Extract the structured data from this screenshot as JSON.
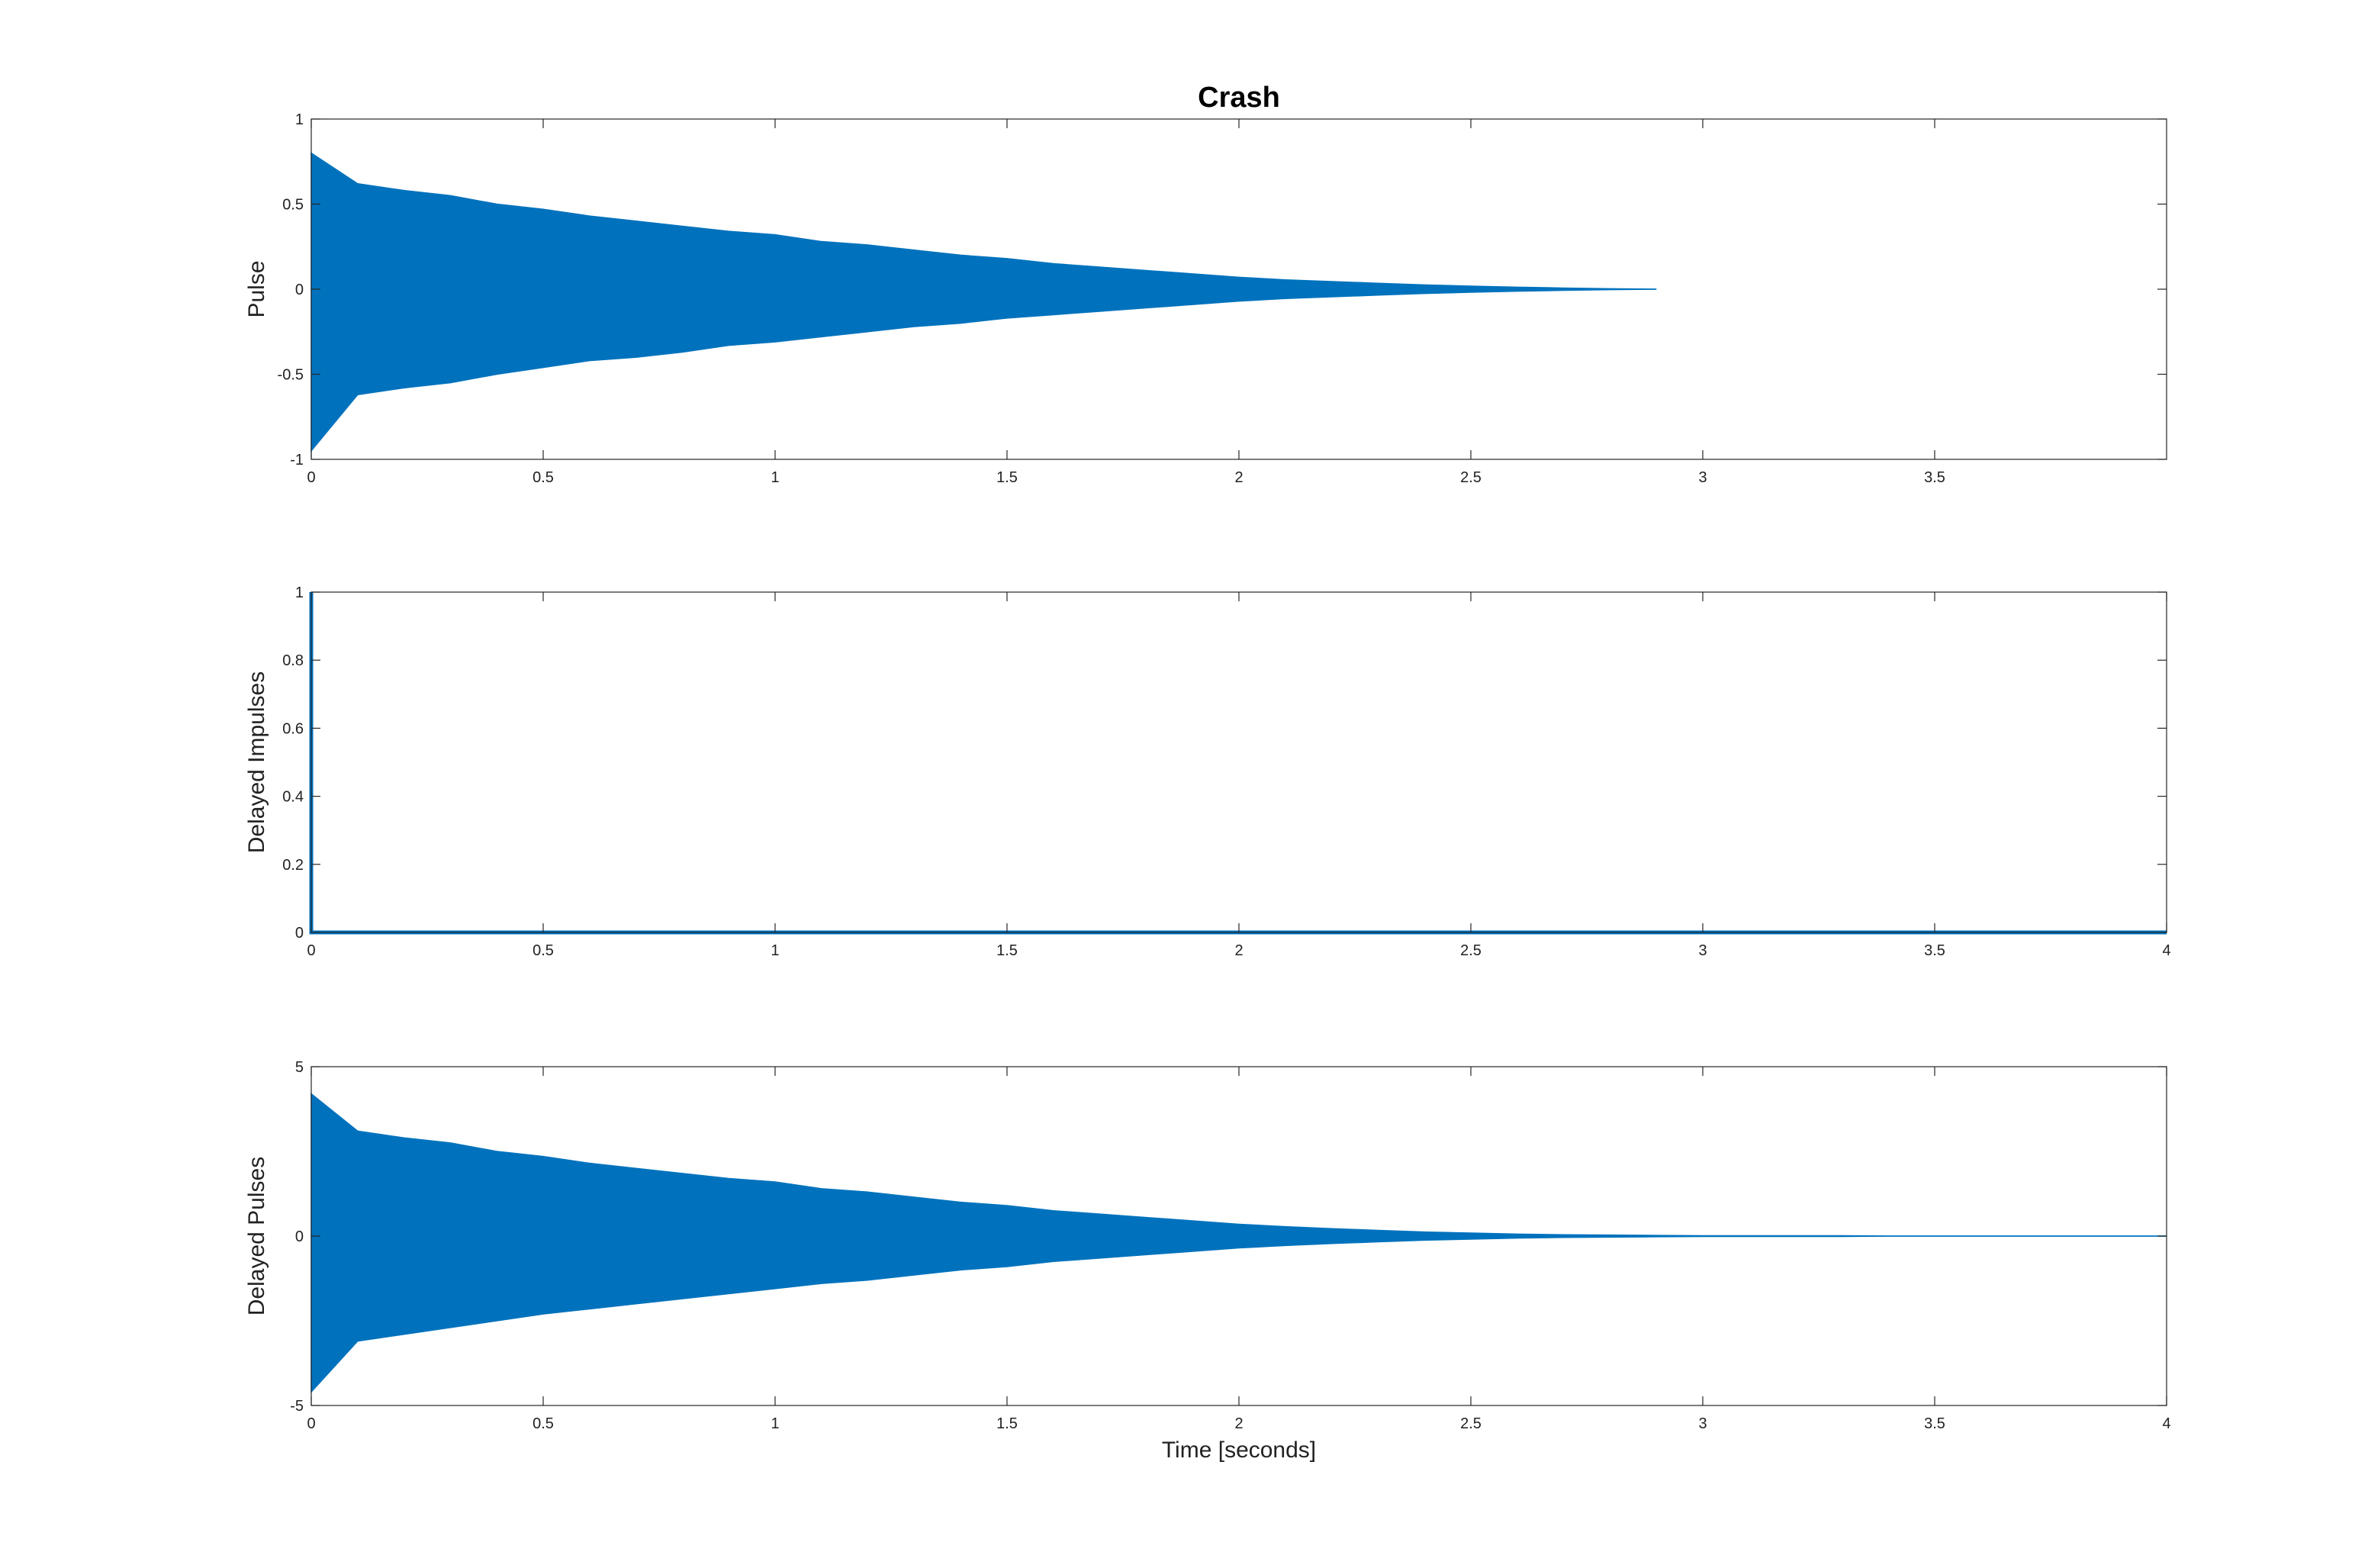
{
  "chart_data": [
    {
      "type": "area",
      "title": "Crash",
      "ylabel": "Pulse",
      "color": "#0072bd",
      "x": [
        0,
        0.1,
        0.2,
        0.3,
        0.4,
        0.5,
        0.6,
        0.7,
        0.8,
        0.9,
        1.0,
        1.1,
        1.2,
        1.3,
        1.4,
        1.5,
        1.6,
        1.7,
        1.8,
        1.9,
        2.0,
        2.1,
        2.2,
        2.3,
        2.4,
        2.5,
        2.6,
        2.7,
        2.8,
        2.9
      ],
      "series": [
        {
          "color": "#0072bd",
          "values": [
            0.8,
            0.62,
            0.58,
            0.55,
            0.5,
            0.47,
            0.43,
            0.4,
            0.37,
            0.34,
            0.32,
            0.28,
            0.26,
            0.23,
            0.2,
            0.18,
            0.15,
            0.13,
            0.11,
            0.09,
            0.07,
            0.055,
            0.045,
            0.035,
            0.025,
            0.018,
            0.012,
            0.007,
            0.003,
            0
          ]
        },
        {
          "color": "#0072bd",
          "values": [
            -0.95,
            -0.62,
            -0.58,
            -0.55,
            -0.5,
            -0.46,
            -0.42,
            -0.4,
            -0.37,
            -0.33,
            -0.31,
            -0.28,
            -0.25,
            -0.22,
            -0.2,
            -0.17,
            -0.15,
            -0.13,
            -0.11,
            -0.09,
            -0.07,
            -0.055,
            -0.045,
            -0.035,
            -0.025,
            -0.018,
            -0.012,
            -0.007,
            -0.003,
            0
          ]
        }
      ],
      "xlim": [
        0,
        4
      ],
      "xticks": [
        0,
        0.5,
        1,
        1.5,
        2,
        2.5,
        3,
        3.5
      ],
      "ylim": [
        -1,
        1
      ],
      "yticks": [
        -1,
        -0.5,
        0,
        0.5,
        1
      ]
    },
    {
      "type": "line",
      "ylabel": "Delayed Impulses",
      "color": "#0072bd",
      "x": [
        0,
        0,
        0,
        4
      ],
      "series": [
        {
          "color": "#0072bd",
          "values": [
            0,
            1,
            0,
            0
          ]
        }
      ],
      "xlim": [
        0,
        4
      ],
      "xticks": [
        0,
        0.5,
        1,
        1.5,
        2,
        2.5,
        3,
        3.5,
        4
      ],
      "ylim": [
        0,
        1
      ],
      "yticks": [
        0,
        0.2,
        0.4,
        0.6,
        0.8,
        1
      ]
    },
    {
      "type": "area",
      "ylabel": "Delayed Pulses",
      "xlabel": "Time [seconds]",
      "color": "#0072bd",
      "x": [
        0,
        0.1,
        0.2,
        0.3,
        0.4,
        0.5,
        0.6,
        0.7,
        0.8,
        0.9,
        1.0,
        1.1,
        1.2,
        1.3,
        1.4,
        1.5,
        1.6,
        1.7,
        1.8,
        1.9,
        2.0,
        2.1,
        2.2,
        2.3,
        2.4,
        2.5,
        2.6,
        2.7,
        2.8,
        2.9,
        3.0,
        3.1,
        3.2,
        3.3,
        3.4,
        3.5,
        3.6,
        3.7,
        3.8,
        3.9,
        4.0
      ],
      "series": [
        {
          "color": "#0072bd",
          "values": [
            4.2,
            3.1,
            2.9,
            2.75,
            2.5,
            2.35,
            2.15,
            2.0,
            1.85,
            1.7,
            1.6,
            1.4,
            1.3,
            1.15,
            1.0,
            0.9,
            0.75,
            0.65,
            0.55,
            0.45,
            0.35,
            0.28,
            0.22,
            0.17,
            0.12,
            0.09,
            0.06,
            0.04,
            0.03,
            0.02,
            0.01,
            0.01,
            0.01,
            0.01,
            0,
            0,
            0,
            0,
            0,
            0,
            0
          ]
        },
        {
          "color": "#0072bd",
          "values": [
            -4.6,
            -3.1,
            -2.9,
            -2.7,
            -2.5,
            -2.3,
            -2.15,
            -2.0,
            -1.85,
            -1.7,
            -1.55,
            -1.4,
            -1.3,
            -1.15,
            -1.0,
            -0.9,
            -0.75,
            -0.65,
            -0.55,
            -0.45,
            -0.35,
            -0.28,
            -0.22,
            -0.17,
            -0.12,
            -0.09,
            -0.06,
            -0.04,
            -0.03,
            -0.02,
            -0.01,
            -0.01,
            -0.01,
            -0.01,
            0,
            0,
            0,
            0,
            0,
            0,
            0
          ]
        }
      ],
      "xlim": [
        0,
        4
      ],
      "xticks": [
        0,
        0.5,
        1,
        1.5,
        2,
        2.5,
        3,
        3.5,
        4
      ],
      "ylim": [
        -5,
        5
      ],
      "yticks": [
        -5,
        0,
        5
      ]
    }
  ]
}
